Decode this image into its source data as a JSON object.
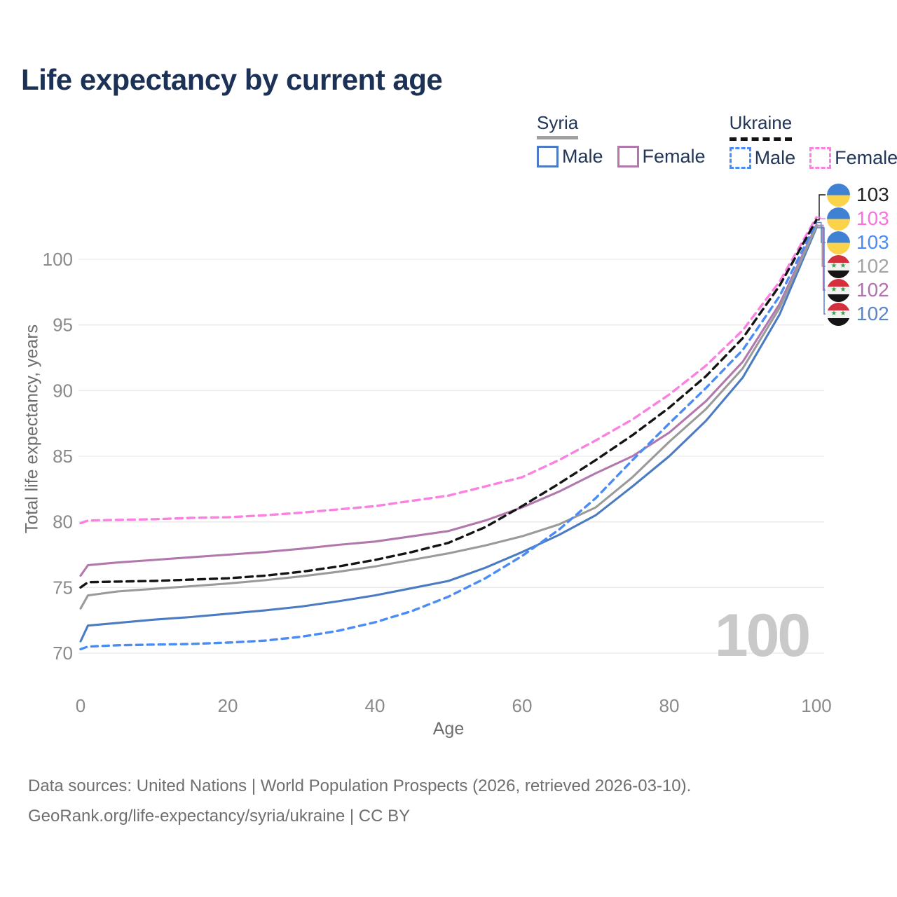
{
  "title": "Life expectancy by current age",
  "watermark": "100",
  "legend": {
    "groups": [
      {
        "name": "Syria",
        "line_style": "solid",
        "underline_color": "#a0a0a0",
        "items": [
          {
            "label": "Male",
            "color": "#4b7bc2"
          },
          {
            "label": "Female",
            "color": "#b278ad"
          }
        ]
      },
      {
        "name": "Ukraine",
        "line_style": "dashed",
        "underline_color": "#141414",
        "items": [
          {
            "label": "Male",
            "color": "#4a8cf6"
          },
          {
            "label": "Female",
            "color": "#fb80e2"
          }
        ]
      }
    ]
  },
  "flags": {
    "ukraine": {
      "top": "#3f82d4",
      "bottom": "#fbd34b"
    },
    "syria": {
      "red": "#d32f3c",
      "white": "#f2f2f2",
      "black": "#151515",
      "star": "#3f9e47"
    }
  },
  "chart_data": {
    "type": "line",
    "title": "Life expectancy by current age",
    "xlabel": "Age",
    "ylabel": "Total life expectancy, years",
    "x_ticks": [
      0,
      20,
      40,
      60,
      80,
      100
    ],
    "y_ticks": [
      70,
      75,
      80,
      85,
      90,
      95,
      100
    ],
    "xlim": [
      0,
      100
    ],
    "ylim": [
      70,
      103.5
    ],
    "grid": "horizontal",
    "legend_position": "top-right",
    "x": [
      0,
      1,
      5,
      10,
      15,
      20,
      25,
      30,
      35,
      40,
      45,
      50,
      55,
      60,
      65,
      70,
      75,
      80,
      85,
      90,
      95,
      100
    ],
    "series": [
      {
        "id": "ua-total",
        "name": "Ukraine Total",
        "country": "Ukraine",
        "sex": "Total",
        "color": "#141414",
        "label_color": "#222222",
        "dash": "10 7",
        "flag": "ukraine",
        "end_label": "103",
        "values": [
          75.0,
          75.4,
          75.45,
          75.5,
          75.6,
          75.7,
          75.9,
          76.2,
          76.6,
          77.1,
          77.7,
          78.4,
          79.6,
          81.2,
          82.9,
          84.7,
          86.6,
          88.7,
          91.1,
          94.0,
          98.0,
          103.0
        ]
      },
      {
        "id": "ua-female",
        "name": "Ukraine Female",
        "country": "Ukraine",
        "sex": "Female",
        "color": "#fb80e2",
        "label_color": "#fb6fe0",
        "dash": "10 7",
        "flag": "ukraine",
        "end_label": "103",
        "values": [
          79.9,
          80.1,
          80.15,
          80.2,
          80.3,
          80.35,
          80.5,
          80.7,
          80.95,
          81.2,
          81.6,
          82.0,
          82.7,
          83.4,
          84.7,
          86.2,
          87.8,
          89.7,
          91.9,
          94.6,
          98.3,
          103.2
        ]
      },
      {
        "id": "ua-male",
        "name": "Ukraine Male",
        "country": "Ukraine",
        "sex": "Male",
        "color": "#4a8cf6",
        "label_color": "#4a8cf6",
        "dash": "9 7",
        "flag": "ukraine",
        "end_label": "103",
        "values": [
          70.3,
          70.5,
          70.6,
          70.65,
          70.7,
          70.8,
          70.95,
          71.25,
          71.7,
          72.35,
          73.2,
          74.3,
          75.7,
          77.4,
          79.4,
          81.8,
          84.7,
          87.5,
          90.2,
          93.1,
          97.2,
          102.8
        ]
      },
      {
        "id": "sy-total",
        "name": "Syria Total",
        "country": "Syria",
        "sex": "Total",
        "color": "#9a9a9a",
        "label_color": "#a3a3a3",
        "dash": "",
        "flag": "syria",
        "end_label": "102",
        "values": [
          73.4,
          74.4,
          74.7,
          74.9,
          75.1,
          75.3,
          75.55,
          75.85,
          76.2,
          76.6,
          77.1,
          77.6,
          78.2,
          78.9,
          79.8,
          81.1,
          83.4,
          86.1,
          88.6,
          91.7,
          96.3,
          102.5
        ]
      },
      {
        "id": "sy-female",
        "name": "Syria Female",
        "country": "Syria",
        "sex": "Female",
        "color": "#b278ad",
        "label_color": "#b36fae",
        "dash": "",
        "flag": "syria",
        "end_label": "102",
        "values": [
          75.9,
          76.7,
          76.9,
          77.1,
          77.3,
          77.5,
          77.7,
          77.95,
          78.25,
          78.5,
          78.9,
          79.3,
          80.1,
          81.1,
          82.3,
          83.7,
          85.0,
          86.8,
          89.2,
          92.2,
          96.6,
          102.6
        ]
      },
      {
        "id": "sy-male",
        "name": "Syria Male",
        "country": "Syria",
        "sex": "Male",
        "color": "#4b7bc2",
        "label_color": "#5b85c9",
        "dash": "",
        "flag": "syria",
        "end_label": "102",
        "values": [
          70.9,
          72.1,
          72.3,
          72.55,
          72.75,
          73.0,
          73.25,
          73.55,
          73.95,
          74.4,
          74.95,
          75.5,
          76.5,
          77.7,
          79.0,
          80.5,
          82.7,
          85.0,
          87.7,
          91.0,
          95.8,
          102.4
        ]
      }
    ]
  },
  "footer": {
    "line1": "Data sources: United Nations | World Population Prospects (2026, retrieved 2026-03-10).",
    "line2": "GeoRank.org/life-expectancy/syria/ukraine | CC BY"
  }
}
